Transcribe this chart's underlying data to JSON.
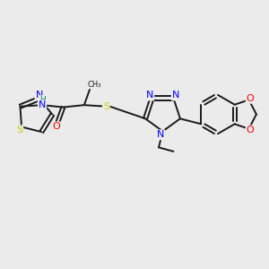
{
  "background_color": "#ebebeb",
  "bond_color": "#1a1a1a",
  "atom_colors": {
    "N": "#0000ff",
    "S": "#cccc00",
    "O": "#ff0000",
    "C": "#1a1a1a",
    "H": "#008080"
  },
  "lw": 1.4,
  "fs": 8.0
}
